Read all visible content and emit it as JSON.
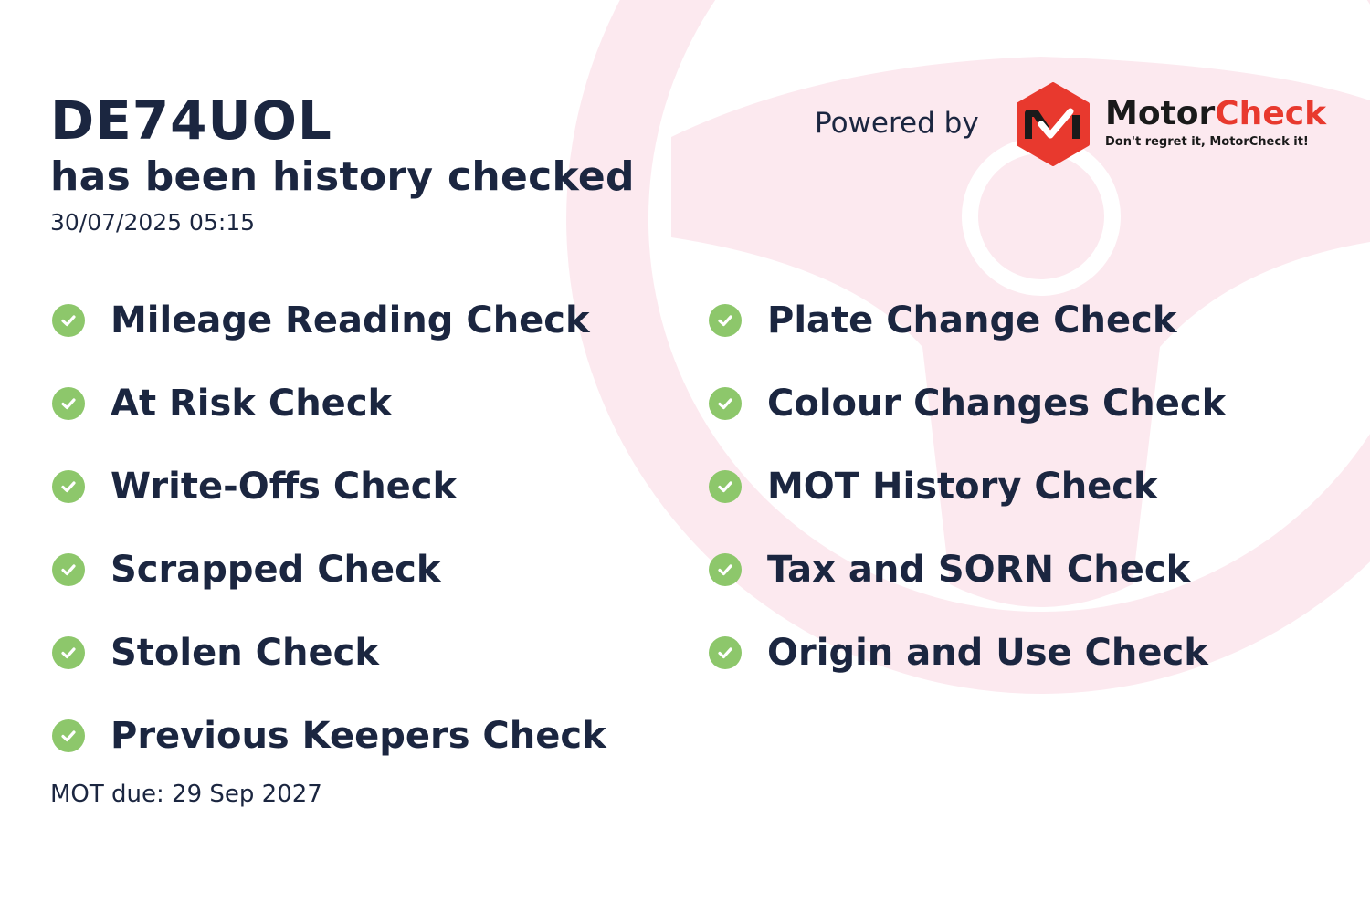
{
  "header": {
    "plate": "DE74UOL",
    "subtitle": "has been history checked",
    "datetime": "30/07/2025 05:15"
  },
  "branding": {
    "powered_by": "Powered by",
    "brand_part1": "Motor",
    "brand_part2": "Check",
    "tagline": "Don't regret it, MotorCheck it!",
    "brand_color": "#e8392e"
  },
  "checks_left": [
    {
      "label": "Mileage Reading Check",
      "icon": "check-circle-icon"
    },
    {
      "label": "At Risk Check",
      "icon": "check-circle-icon"
    },
    {
      "label": "Write-Offs Check",
      "icon": "check-circle-icon"
    },
    {
      "label": "Scrapped Check",
      "icon": "check-circle-icon"
    },
    {
      "label": "Stolen Check",
      "icon": "check-circle-icon"
    },
    {
      "label": "Previous Keepers Check",
      "icon": "check-circle-icon"
    }
  ],
  "checks_right": [
    {
      "label": "Plate Change Check",
      "icon": "check-circle-icon"
    },
    {
      "label": "Colour Changes Check",
      "icon": "check-circle-icon"
    },
    {
      "label": "MOT History Check",
      "icon": "check-circle-icon"
    },
    {
      "label": "Tax and SORN Check",
      "icon": "check-circle-icon"
    },
    {
      "label": "Origin and Use Check",
      "icon": "check-circle-icon"
    }
  ],
  "footer": {
    "mot_due": "MOT due: 29 Sep 2027"
  },
  "colors": {
    "check_green": "#8dc76b",
    "text_navy": "#1b2640",
    "wheel_pink": "#fce9ef"
  }
}
